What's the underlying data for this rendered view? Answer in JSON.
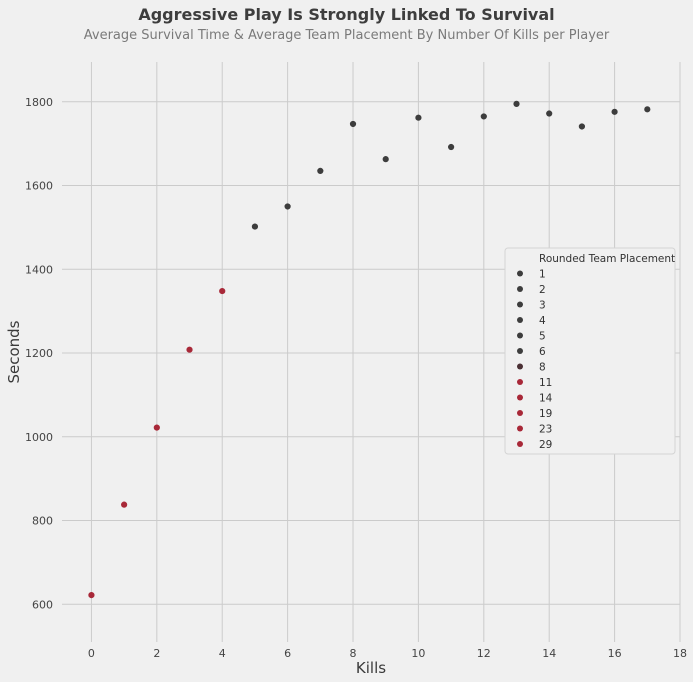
{
  "chart_data": {
    "type": "scatter",
    "title": "Aggressive Play Is Strongly Linked To Survival",
    "subtitle": "Average Survival Time & Average Team Placement By Number Of Kills per Player",
    "xlabel": "Kills",
    "ylabel": "Seconds",
    "xlim": [
      -0.9,
      18
    ],
    "ylim": [
      510,
      1895
    ],
    "xticks": [
      0,
      2,
      4,
      6,
      8,
      10,
      12,
      14,
      16,
      18
    ],
    "yticks": [
      600,
      800,
      1000,
      1200,
      1400,
      1600,
      1800
    ],
    "grid": true,
    "legend": {
      "title": "Rounded Team Placement",
      "placement": "right",
      "entries": [
        {
          "label": "1",
          "color": "#3d3d3d"
        },
        {
          "label": "2",
          "color": "#3d3d3d"
        },
        {
          "label": "3",
          "color": "#3d3d3d"
        },
        {
          "label": "4",
          "color": "#3d3d3d"
        },
        {
          "label": "5",
          "color": "#3d3d3d"
        },
        {
          "label": "6",
          "color": "#3d3d3d"
        },
        {
          "label": "8",
          "color": "#4a3035"
        },
        {
          "label": "11",
          "color": "#a82838"
        },
        {
          "label": "14",
          "color": "#a82838"
        },
        {
          "label": "19",
          "color": "#a82838"
        },
        {
          "label": "23",
          "color": "#a82838"
        },
        {
          "label": "29",
          "color": "#a82838"
        }
      ]
    },
    "points": [
      {
        "x": 0,
        "y": 622,
        "color": "#a82838"
      },
      {
        "x": 1,
        "y": 838,
        "color": "#a82838"
      },
      {
        "x": 2,
        "y": 1022,
        "color": "#a82838"
      },
      {
        "x": 3,
        "y": 1208,
        "color": "#a82838"
      },
      {
        "x": 4,
        "y": 1348,
        "color": "#a82838"
      },
      {
        "x": 5,
        "y": 1502,
        "color": "#3d3d3d"
      },
      {
        "x": 6,
        "y": 1550,
        "color": "#3d3d3d"
      },
      {
        "x": 7,
        "y": 1635,
        "color": "#3d3d3d"
      },
      {
        "x": 8,
        "y": 1747,
        "color": "#3d3d3d"
      },
      {
        "x": 9,
        "y": 1663,
        "color": "#3d3d3d"
      },
      {
        "x": 10,
        "y": 1762,
        "color": "#3d3d3d"
      },
      {
        "x": 11,
        "y": 1692,
        "color": "#3d3d3d"
      },
      {
        "x": 12,
        "y": 1765,
        "color": "#3d3d3d"
      },
      {
        "x": 13,
        "y": 1795,
        "color": "#3d3d3d"
      },
      {
        "x": 14,
        "y": 1772,
        "color": "#3d3d3d"
      },
      {
        "x": 15,
        "y": 1741,
        "color": "#3d3d3d"
      },
      {
        "x": 16,
        "y": 1776,
        "color": "#3d3d3d"
      },
      {
        "x": 17,
        "y": 1782,
        "color": "#3d3d3d"
      }
    ]
  }
}
